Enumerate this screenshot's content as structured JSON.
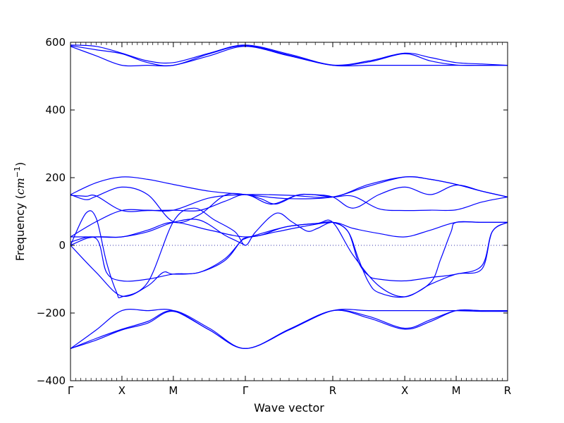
{
  "chart_data": {
    "type": "line",
    "xlabel": "Wave vector",
    "ylabel_prefix": "Frequency (",
    "ylabel_unit": "cm",
    "ylabel_exp": "−1",
    "ylabel_suffix": ")",
    "ylim": [
      -400,
      600
    ],
    "yticks": [
      600,
      400,
      200,
      0,
      -200,
      -400
    ],
    "ytick_labels": [
      "600",
      "400",
      "200",
      "0",
      "−200",
      "−400"
    ],
    "xlim": [
      0,
      8.5
    ],
    "kpoints": [
      {
        "label": "Γ",
        "x": 0
      },
      {
        "label": "X",
        "x": 1
      },
      {
        "label": "M",
        "x": 2
      },
      {
        "label": "Γ",
        "x": 3.4
      },
      {
        "label": "R",
        "x": 5.1
      },
      {
        "label": "X",
        "x": 6.5
      },
      {
        "label": "M",
        "x": 7.5
      },
      {
        "label": "R",
        "x": 8.5
      }
    ],
    "zero_line": {
      "y": 0,
      "style": "dotted"
    },
    "grid": false,
    "legend": "none",
    "colors": {
      "band": "#0000ff",
      "axis": "#000000",
      "zero_line": "#3333aa"
    },
    "series": [
      {
        "x": [
          0,
          0.5,
          1,
          1.5,
          2,
          2.7,
          3.4,
          4.25,
          5.1,
          5.8,
          6.5,
          7,
          7.5,
          8,
          8.5
        ],
        "y": [
          592,
          588,
          568,
          545,
          540,
          568,
          592,
          565,
          533,
          545,
          568,
          555,
          540,
          536,
          532
        ]
      },
      {
        "x": [
          0,
          0.5,
          1,
          1.5,
          2,
          2.7,
          3.4,
          4.25,
          5.1,
          5.8,
          6.5,
          7,
          7.5,
          8,
          8.5
        ],
        "y": [
          590,
          578,
          566,
          540,
          532,
          566,
          590,
          562,
          532,
          542,
          566,
          545,
          533,
          532,
          532
        ]
      },
      {
        "x": [
          0,
          0.5,
          1,
          1.5,
          2,
          2.7,
          3.4,
          4.25,
          5.1,
          5.8,
          6.5,
          7,
          7.5,
          8,
          8.5
        ],
        "y": [
          588,
          560,
          532,
          532,
          532,
          560,
          588,
          560,
          532,
          532,
          532,
          532,
          532,
          532,
          532
        ]
      },
      {
        "x": [
          0,
          0.5,
          1,
          1.5,
          2,
          2.7,
          3.4,
          4.25,
          5.1,
          5.8,
          6.5,
          7,
          7.5,
          8,
          8.5
        ],
        "y": [
          150,
          185,
          202,
          195,
          180,
          160,
          150,
          138,
          143,
          175,
          202,
          195,
          180,
          160,
          143
        ]
      },
      {
        "x": [
          0,
          0.3,
          0.5,
          1,
          1.5,
          2,
          2.5,
          3,
          3.4,
          3.7,
          4.0,
          4.4,
          4.7,
          5.1,
          5.5,
          6,
          6.5,
          7,
          7.5,
          8,
          8.5
        ],
        "y": [
          150,
          135,
          145,
          172,
          150,
          70,
          90,
          148,
          150,
          138,
          122,
          148,
          150,
          143,
          145,
          108,
          103,
          104,
          105,
          128,
          143
        ]
      },
      {
        "x": [
          0,
          0.3,
          0.5,
          1,
          1.5,
          2,
          2.5,
          3,
          3.4,
          3.8,
          4.0,
          4.4,
          4.7,
          5.1,
          5.5,
          6,
          6.5,
          7,
          7.5,
          8,
          8.5
        ],
        "y": [
          148,
          145,
          146,
          103,
          103,
          104,
          103,
          130,
          150,
          125,
          124,
          148,
          150,
          143,
          110,
          150,
          172,
          150,
          178,
          160,
          143
        ]
      },
      {
        "x": [
          0,
          0.5,
          1,
          1.5,
          2,
          2.7,
          3.4,
          4.25,
          5.1,
          5.8,
          6.5,
          7,
          7.5,
          8,
          8.5
        ],
        "y": [
          25,
          70,
          103,
          104,
          104,
          140,
          150,
          148,
          143,
          180,
          202,
          195,
          180,
          160,
          143
        ]
      },
      {
        "x": [
          0,
          0.3,
          0.5,
          0.7,
          0.9,
          1,
          1.5,
          2,
          2.4,
          2.8,
          3.2,
          3.4,
          3.6,
          4.0,
          4.3,
          4.6,
          4.8,
          5.1,
          5.4,
          5.6,
          5.8,
          6,
          6.5,
          7,
          7.2,
          7.4,
          7.5,
          8,
          8.5
        ],
        "y": [
          0,
          95,
          80,
          -50,
          -140,
          -152,
          -110,
          70,
          110,
          75,
          40,
          0,
          40,
          95,
          70,
          42,
          50,
          68,
          40,
          -40,
          -110,
          -140,
          -152,
          -110,
          -40,
          40,
          68,
          68,
          68
        ]
      },
      {
        "x": [
          0,
          0.5,
          1,
          1.5,
          2,
          2.7,
          3.4,
          4.0,
          4.5,
          5.1,
          5.5,
          6,
          6.5,
          7,
          7.5,
          8,
          8.5
        ],
        "y": [
          25,
          25,
          25,
          45,
          68,
          45,
          25,
          40,
          55,
          68,
          50,
          35,
          25,
          45,
          68,
          68,
          68
        ]
      },
      {
        "x": [
          0,
          0.5,
          0.7,
          1,
          1.5,
          2,
          2.5,
          3,
          3.3,
          3.4,
          3.6,
          4.2,
          4.8,
          5.1,
          5.4,
          5.6,
          5.8,
          6,
          6.5,
          7,
          7.5,
          8,
          8.2,
          8.5
        ],
        "y": [
          10,
          20,
          -80,
          -105,
          -100,
          -85,
          -80,
          -40,
          10,
          20,
          30,
          55,
          65,
          68,
          40,
          -50,
          -90,
          -100,
          -105,
          -95,
          -85,
          -60,
          40,
          68
        ]
      },
      {
        "x": [
          0,
          0.5,
          1,
          1.5,
          1.8,
          2,
          2.5,
          3,
          3.3,
          3.4,
          3.7,
          4.2,
          4.8,
          5.1,
          5.5,
          6,
          6.5,
          7,
          7.5,
          8,
          8.2,
          8.5
        ],
        "y": [
          0,
          -80,
          -150,
          -120,
          -80,
          -85,
          -80,
          -45,
          10,
          22,
          30,
          55,
          65,
          68,
          -30,
          -120,
          -152,
          -115,
          -85,
          -70,
          40,
          68
        ]
      },
      {
        "x": [
          0,
          0.3,
          0.5,
          0.7,
          1,
          1.5,
          2,
          2.5,
          3,
          3.2,
          3.4
        ],
        "y": [
          0,
          20,
          25,
          25,
          25,
          40,
          68,
          75,
          30,
          15,
          0
        ]
      },
      {
        "x": [
          0,
          0.5,
          1,
          1.5,
          2,
          2.7,
          3.4,
          4.25,
          5.1,
          5.8,
          6.5,
          7,
          7.5,
          8,
          8.5
        ],
        "y": [
          -305,
          -280,
          -250,
          -230,
          -195,
          -250,
          -305,
          -250,
          -193,
          -215,
          -248,
          -225,
          -193,
          -193,
          -193
        ]
      },
      {
        "x": [
          0,
          0.5,
          1,
          1.5,
          2,
          2.7,
          3.4,
          4.25,
          5.1,
          5.8,
          6.5,
          7,
          7.5,
          8,
          8.5
        ],
        "y": [
          -305,
          -275,
          -248,
          -225,
          -193,
          -245,
          -305,
          -248,
          -193,
          -210,
          -245,
          -220,
          -193,
          -193,
          -193
        ]
      },
      {
        "x": [
          0,
          0.5,
          1,
          1.5,
          2,
          2.7,
          3.4,
          4.25,
          5.1,
          5.8,
          6.5,
          7,
          7.5,
          8,
          8.5
        ],
        "y": [
          -305,
          -250,
          -193,
          -193,
          -193,
          -250,
          -305,
          -250,
          -193,
          -193,
          -193,
          -193,
          -193,
          -195,
          -195
        ]
      }
    ]
  }
}
